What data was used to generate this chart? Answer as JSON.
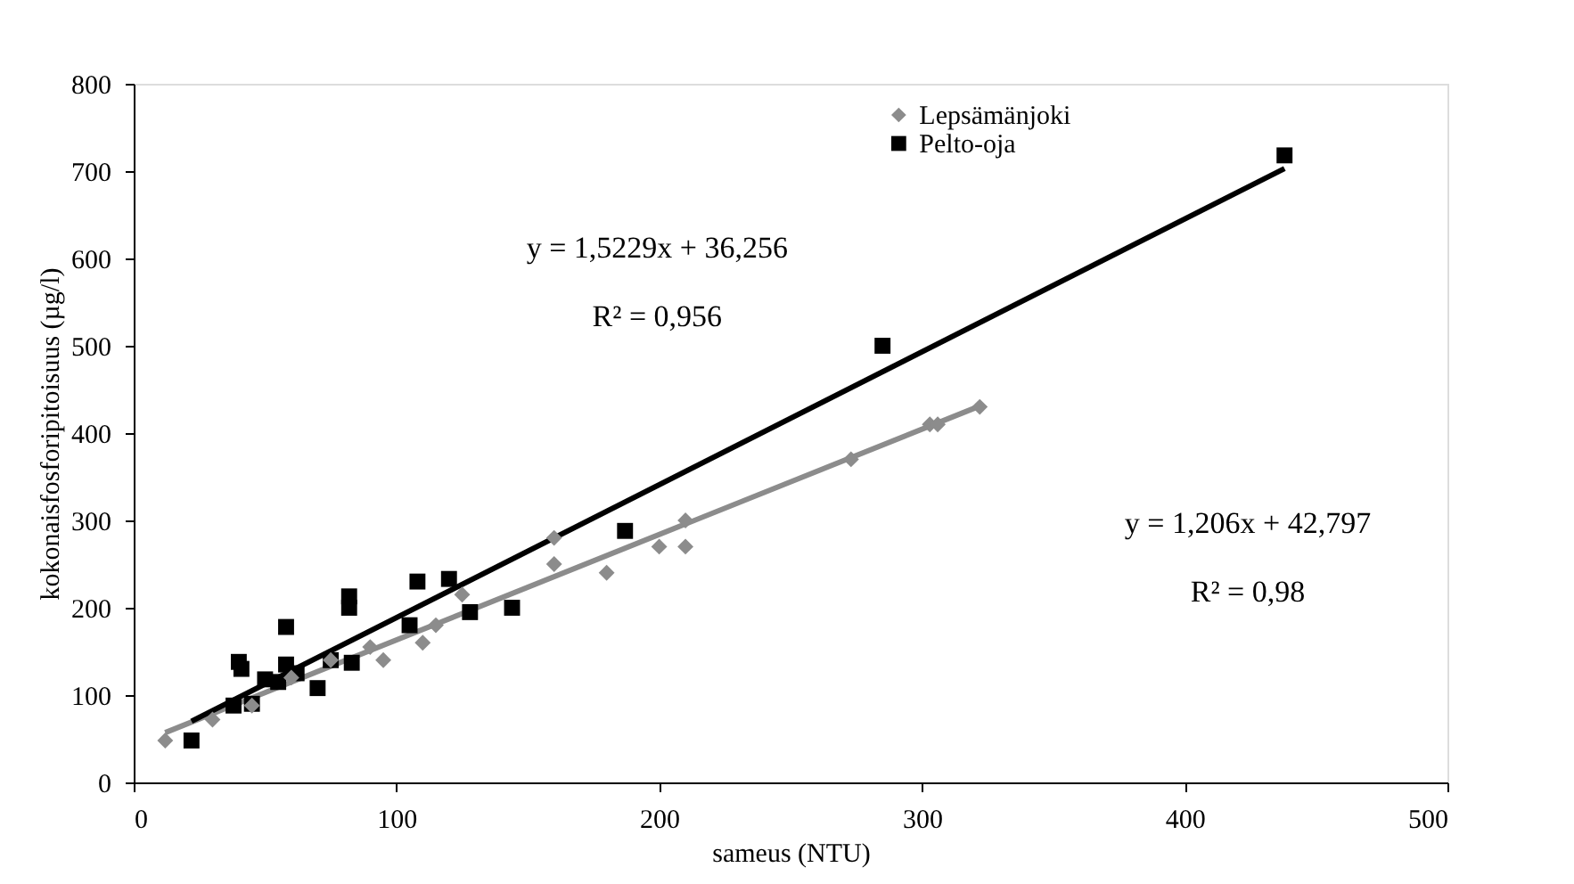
{
  "chart_data": {
    "type": "scatter",
    "xlabel": "sameus (NTU)",
    "ylabel": "kokonaisfosforipitoisuus (µg/l)",
    "xlim": [
      0,
      500
    ],
    "xticks": [
      0,
      100,
      200,
      300,
      400,
      500
    ],
    "ylim": [
      0,
      800
    ],
    "yticks": [
      0,
      100,
      200,
      300,
      400,
      500,
      600,
      700,
      800
    ],
    "grid": false,
    "legend": "top",
    "series": [
      {
        "name": "Lepsämänjoki",
        "color": "#8c8c8c",
        "marker": "diamond",
        "x": [
          12,
          30,
          45,
          60,
          75,
          90,
          95,
          110,
          115,
          125,
          160,
          160,
          180,
          200,
          210,
          210,
          273,
          303,
          306,
          322
        ],
        "values": [
          48,
          72,
          88,
          120,
          140,
          155,
          140,
          160,
          180,
          215,
          250,
          280,
          240,
          270,
          270,
          300,
          370,
          410,
          410,
          430
        ]
      },
      {
        "name": "Pelto-oja",
        "color": "#000000",
        "marker": "square",
        "x": [
          22,
          38,
          40,
          41,
          45,
          50,
          55,
          58,
          58,
          62,
          70,
          75,
          82,
          82,
          83,
          105,
          108,
          120,
          128,
          144,
          187,
          285,
          438
        ],
        "values": [
          48,
          88,
          138,
          130,
          90,
          118,
          115,
          178,
          135,
          125,
          108,
          140,
          200,
          213,
          137,
          180,
          230,
          233,
          195,
          200,
          288,
          500,
          718
        ]
      },
      {
        "type": "line",
        "color": "#8c8c8c",
        "line_style": "solid",
        "x": [
          12,
          322
        ],
        "values": [
          57,
          431
        ]
      },
      {
        "type": "line",
        "color": "#000000",
        "line_style": "solid",
        "x": [
          22,
          438
        ],
        "values": [
          70,
          703
        ]
      }
    ],
    "annotations": [
      "y = 1,5229x + 36,256",
      "R² = 0,956",
      "y = 1,206x + 42,797",
      "R² = 0,98"
    ]
  }
}
